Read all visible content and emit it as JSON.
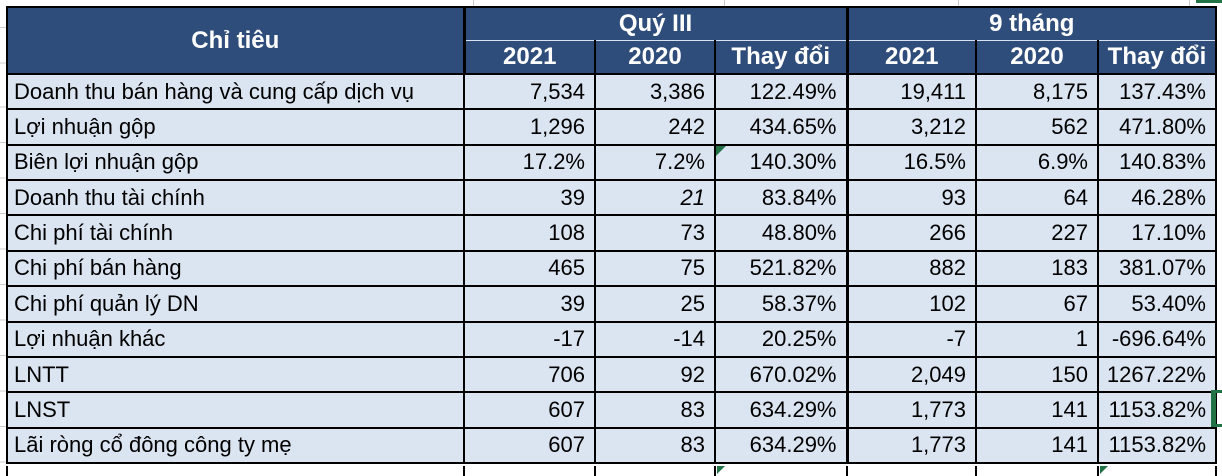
{
  "colors": {
    "header_bg": "#2F4D7A",
    "row_bg": "#DBE4F1",
    "border": "#000000",
    "indicator_green": "#217346"
  },
  "header": {
    "criteria_label": "Chỉ tiêu",
    "groups": [
      {
        "label": "Quý III",
        "columns": [
          "2021",
          "2020",
          "Thay đổi"
        ]
      },
      {
        "label": "9 tháng",
        "columns": [
          "2021",
          "2020",
          "Thay đổi"
        ]
      }
    ]
  },
  "rows": [
    {
      "label": "Doanh thu bán hàng và cung cấp dịch vụ",
      "values": [
        "7,534",
        "3,386",
        "122.49%",
        "19,411",
        "8,175",
        "137.43%"
      ]
    },
    {
      "label": "Lợi nhuận gộp",
      "values": [
        "1,296",
        "242",
        "434.65%",
        "3,212",
        "562",
        "471.80%"
      ]
    },
    {
      "label": "Biên lợi nhuận gộp",
      "values": [
        "17.2%",
        "7.2%",
        "140.30%",
        "16.5%",
        "6.9%",
        "140.83%"
      ],
      "error_indicator_cols": [
        2
      ]
    },
    {
      "label": "Doanh thu tài chính",
      "values": [
        "39",
        "21",
        "83.84%",
        "93",
        "64",
        "46.28%"
      ],
      "italic_cols": [
        1
      ]
    },
    {
      "label": "Chi phí tài chính",
      "values": [
        "108",
        "73",
        "48.80%",
        "266",
        "227",
        "17.10%"
      ]
    },
    {
      "label": "Chi phí bán hàng",
      "values": [
        "465",
        "75",
        "521.82%",
        "882",
        "183",
        "381.07%"
      ]
    },
    {
      "label": "Chi phí quản lý DN",
      "values": [
        "39",
        "25",
        "58.37%",
        "102",
        "67",
        "53.40%"
      ]
    },
    {
      "label": "Lợi nhuận khác",
      "values": [
        "-17",
        "-14",
        "20.25%",
        "-7",
        "1",
        "-696.64%"
      ]
    },
    {
      "label": "LNTT",
      "values": [
        "706",
        "92",
        "670.02%",
        "2,049",
        "150",
        "1267.22%"
      ]
    },
    {
      "label": "LNST",
      "values": [
        "607",
        "83",
        "634.29%",
        "1,773",
        "141",
        "1153.82%"
      ],
      "selection_bracket": true
    },
    {
      "label": "Lãi ròng cổ đông công ty mẹ",
      "values": [
        "607",
        "83",
        "634.29%",
        "1,773",
        "141",
        "1153.82%"
      ]
    }
  ]
}
